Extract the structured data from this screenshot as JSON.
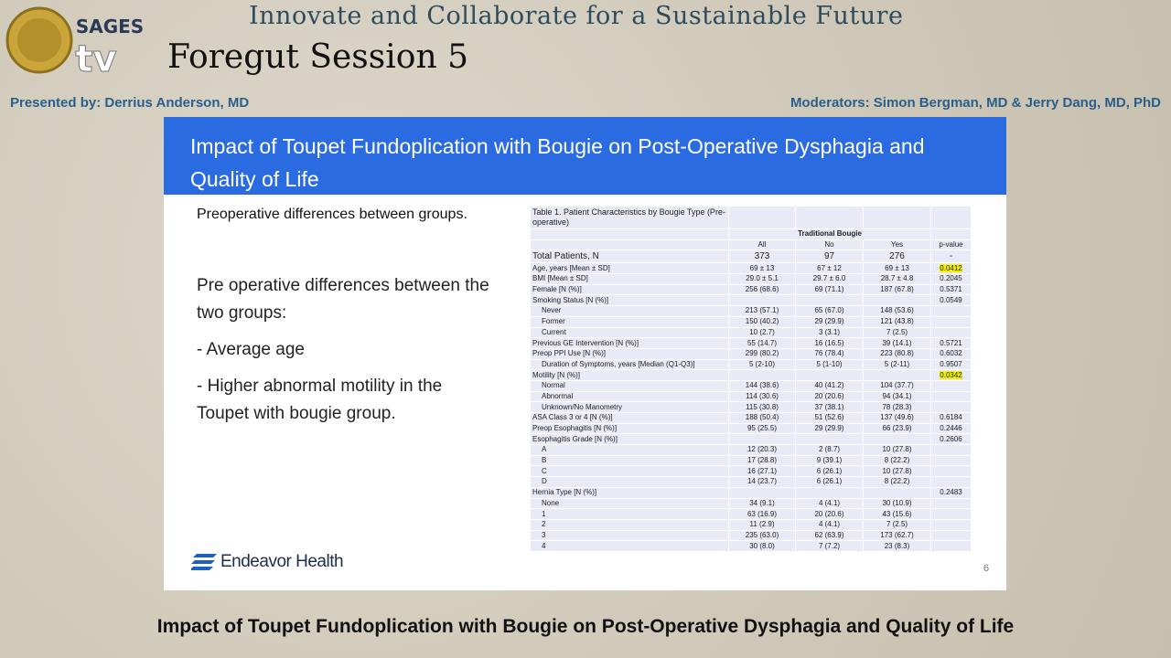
{
  "header": {
    "logo_text": "SAGES",
    "logo_tv": "tv",
    "title": "Innovate and Collaborate for a Sustainable Future",
    "session": "Foregut Session 5",
    "presenter": "Presented by: Derrius Anderson, MD",
    "moderators": "Moderators: Simon Bergman, MD & Jerry Dang, MD, PhD"
  },
  "slide": {
    "title": "Impact of Toupet Fundoplication with Bougie on Post-Operative Dysphagia and Quality of Life",
    "subtitle": "Preoperative differences between groups.",
    "bullets": [
      "Pre operative differences between the two groups:",
      "- Average age",
      "- Higher abnormal motility in the Toupet with bougie group."
    ],
    "logo": "Endeavor Health",
    "page_number": "6"
  },
  "table": {
    "caption": "Table 1. Patient Characteristics by Bougie Type (Pre-operative)",
    "group_header": "Traditional Bougie",
    "columns": [
      "All",
      "No",
      "Yes",
      "p-value"
    ],
    "total": {
      "label": "Total Patients, N",
      "cells": [
        "373",
        "97",
        "276",
        "-"
      ]
    },
    "rows": [
      {
        "label": "Age, years [Mean ± SD]",
        "cells": [
          "69 ± 13",
          "67 ± 12",
          "69 ± 13",
          "0.0412"
        ],
        "highlight": true
      },
      {
        "label": "BMI [Mean ± SD]",
        "cells": [
          "29.0 ± 5.1",
          "29.7 ± 6.0",
          "28.7 ± 4.8",
          "0.2045"
        ]
      },
      {
        "label": "Female [N (%)]",
        "cells": [
          "256 (68.6)",
          "69 (71.1)",
          "187 (67.8)",
          "0.5371"
        ]
      },
      {
        "label": "Smoking Status [N (%)]",
        "cells": [
          null,
          null,
          null,
          "0.0549"
        ],
        "sub": [
          {
            "label": "Never",
            "cells": [
              "213 (57.1)",
              "65 (67.0)",
              "148 (53.6)",
              null
            ]
          },
          {
            "label": "Former",
            "cells": [
              "150 (40.2)",
              "29 (29.9)",
              "121 (43.8)",
              null
            ]
          },
          {
            "label": "Current",
            "cells": [
              "10 (2.7)",
              "3 (3.1)",
              "7 (2.5)",
              null
            ]
          }
        ]
      },
      {
        "label": "Previous GE Intervention [N (%)]",
        "cells": [
          "55 (14.7)",
          "16 (16.5)",
          "39 (14.1)",
          "0.5721"
        ]
      },
      {
        "label": "Preop PPI Use [N (%)]",
        "cells": [
          "299 (80.2)",
          "76 (78.4)",
          "223 (80.8)",
          "0.6032"
        ],
        "sub": [
          {
            "label": "Duration of Symptoms, years [Median (Q1-Q3)]",
            "cells": [
              "5 (2-10)",
              "5 (1-10)",
              "5 (2-11)",
              "0.9507"
            ]
          }
        ]
      },
      {
        "label": "Motility [N (%)]",
        "cells": [
          null,
          null,
          null,
          "0.0342"
        ],
        "highlight": true,
        "sub": [
          {
            "label": "Normal",
            "cells": [
              "144 (38.6)",
              "40 (41.2)",
              "104 (37.7)",
              null
            ]
          },
          {
            "label": "Abnormal",
            "cells": [
              "114 (30.6)",
              "20 (20.6)",
              "94 (34.1)",
              null
            ]
          },
          {
            "label": "Unknown/No Manometry",
            "cells": [
              "115 (30.8)",
              "37 (38.1)",
              "78 (28.3)",
              null
            ]
          }
        ]
      },
      {
        "label": "ASA Class 3 or 4 [N (%)]",
        "cells": [
          "188 (50.4)",
          "51 (52.6)",
          "137 (49.6)",
          "0.6184"
        ]
      },
      {
        "label": "Preop Esophagitis [N (%)]",
        "cells": [
          "95 (25.5)",
          "29 (29.9)",
          "66 (23.9)",
          "0.2446"
        ]
      },
      {
        "label": "Esophagitis Grade [N (%)]",
        "cells": [
          null,
          null,
          null,
          "0.2606"
        ],
        "sub": [
          {
            "label": "A",
            "cells": [
              "12 (20.3)",
              "2 (8.7)",
              "10 (27.8)",
              null
            ]
          },
          {
            "label": "B",
            "cells": [
              "17 (28.8)",
              "9 (39.1)",
              "8 (22.2)",
              null
            ]
          },
          {
            "label": "C",
            "cells": [
              "16 (27.1)",
              "6 (26.1)",
              "10 (27.8)",
              null
            ]
          },
          {
            "label": "D",
            "cells": [
              "14 (23.7)",
              "6 (26.1)",
              "8 (22.2)",
              null
            ]
          }
        ]
      },
      {
        "label": "Hernia Type [N (%)]",
        "cells": [
          null,
          null,
          null,
          "0.2483"
        ],
        "sub": [
          {
            "label": "None",
            "cells": [
              "34 (9.1)",
              "4 (4.1)",
              "30 (10.9)",
              null
            ]
          },
          {
            "label": "1",
            "cells": [
              "63 (16.9)",
              "20 (20.6)",
              "43 (15.6)",
              null
            ]
          },
          {
            "label": "2",
            "cells": [
              "11 (2.9)",
              "4 (4.1)",
              "7 (2.5)",
              null
            ]
          },
          {
            "label": "3",
            "cells": [
              "235 (63.0)",
              "62 (63.9)",
              "173 (62.7)",
              null
            ]
          },
          {
            "label": "4",
            "cells": [
              "30 (8.0)",
              "7 (7.2)",
              "23 (8.3)",
              null
            ]
          }
        ]
      }
    ]
  },
  "footer": {
    "caption": "Impact of Toupet Fundoplication with Bougie on Post-Operative Dysphagia and Quality of Life"
  }
}
